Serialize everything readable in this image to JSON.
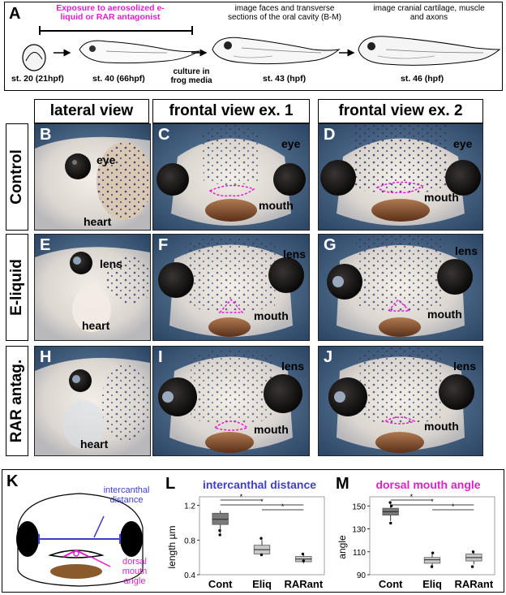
{
  "panelA": {
    "letter": "A",
    "exposure_label": "Exposure to aerosolized e-liquid or RAR antagonist",
    "image_faces_label": "image faces and transverse sections of the oral cavity (B-M)",
    "image_cartilage_label": "image cranial cartilage, muscle and axons",
    "culture_label": "culture in frog media",
    "stages": [
      "st. 20 (21hpf)",
      "st. 40 (66hpf)",
      "st. 43 (hpf)",
      "st. 46 (hpf)"
    ]
  },
  "columns": [
    "lateral view",
    "frontal view ex. 1",
    "frontal view ex. 2"
  ],
  "rows": [
    "Control",
    "E-liquid",
    "RAR antag."
  ],
  "photos": {
    "B": {
      "letter": "B",
      "labels": [
        "eye",
        "heart"
      ]
    },
    "C": {
      "letter": "C",
      "labels": [
        "eye",
        "mouth"
      ]
    },
    "D": {
      "letter": "D",
      "labels": [
        "eye",
        "mouth"
      ]
    },
    "E": {
      "letter": "E",
      "labels": [
        "lens",
        "heart"
      ]
    },
    "F": {
      "letter": "F",
      "labels": [
        "lens",
        "mouth"
      ]
    },
    "G": {
      "letter": "G",
      "labels": [
        "lens",
        "mouth"
      ]
    },
    "H": {
      "letter": "H",
      "labels": [
        "heart"
      ]
    },
    "I": {
      "letter": "I",
      "labels": [
        "lens",
        "mouth"
      ]
    },
    "J": {
      "letter": "J",
      "labels": [
        "lens",
        "mouth"
      ]
    }
  },
  "panelK": {
    "letter": "K",
    "intercanthal_label": "intercanthal distance",
    "mouth_angle_label": "dorsal mouth angle"
  },
  "colors": {
    "magenta": "#e21fcf",
    "blue": "#3f3fcf",
    "brown": "#8a5a2b"
  },
  "chart_data": [
    {
      "letter": "L",
      "type": "box",
      "title": "intercanthal distance",
      "ylabel": "length µm",
      "categories": [
        "Cont",
        "Eliq",
        "RARant"
      ],
      "yticks": [
        0.4,
        0.8,
        1.2
      ],
      "ylim": [
        0.4,
        1.3
      ],
      "boxes": [
        {
          "q1": 0.98,
          "median": 1.04,
          "q3": 1.11,
          "min": 0.88,
          "max": 1.14,
          "outliers": [
            0.86,
            0.91
          ]
        },
        {
          "q1": 0.64,
          "median": 0.69,
          "q3": 0.74,
          "min": 0.62,
          "max": 0.8,
          "outliers": [
            0.63,
            0.82
          ]
        },
        {
          "q1": 0.55,
          "median": 0.58,
          "q3": 0.61,
          "min": 0.53,
          "max": 0.63,
          "outliers": [
            0.56,
            0.64
          ]
        }
      ],
      "significance": [
        "*",
        "*",
        "*"
      ]
    },
    {
      "letter": "M",
      "type": "box",
      "title": "dorsal mouth angle",
      "ylabel": "angle",
      "categories": [
        "Cont",
        "Eliq",
        "RARant"
      ],
      "yticks": [
        90,
        110,
        130,
        150
      ],
      "ylim": [
        90,
        158
      ],
      "boxes": [
        {
          "q1": 142,
          "median": 145,
          "q3": 148,
          "min": 137,
          "max": 152,
          "outliers": [
            135,
            150,
            153
          ]
        },
        {
          "q1": 100,
          "median": 103,
          "q3": 105,
          "min": 98,
          "max": 108,
          "outliers": [
            97,
            109
          ]
        },
        {
          "q1": 102,
          "median": 105,
          "q3": 108,
          "min": 99,
          "max": 110,
          "outliers": [
            97,
            110
          ]
        }
      ],
      "significance": [
        "*",
        "*",
        "*"
      ]
    }
  ]
}
